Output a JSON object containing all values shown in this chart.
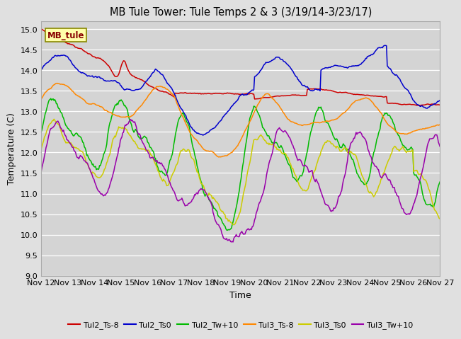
{
  "title": "MB Tule Tower: Tule Temps 2 & 3 (3/19/14-3/23/17)",
  "xlabel": "Time",
  "ylabel": "Temperature (C)",
  "ylim": [
    9.0,
    15.2
  ],
  "yticks": [
    9.0,
    9.5,
    10.0,
    10.5,
    11.0,
    11.5,
    12.0,
    12.5,
    13.0,
    13.5,
    14.0,
    14.5,
    15.0
  ],
  "xtick_labels": [
    "Nov 12",
    "Nov 13",
    "Nov 14",
    "Nov 15",
    "Nov 16",
    "Nov 17",
    "Nov 18",
    "Nov 19",
    "Nov 20",
    "Nov 21",
    "Nov 22",
    "Nov 23",
    "Nov 24",
    "Nov 25",
    "Nov 26",
    "Nov 27"
  ],
  "fig_bg_color": "#e0e0e0",
  "plot_bg_color": "#d4d4d4",
  "legend_entries": [
    "Tul2_Ts-8",
    "Tul2_Ts0",
    "Tul2_Tw+10",
    "Tul3_Ts-8",
    "Tul3_Ts0",
    "Tul3_Tw+10"
  ],
  "line_colors": [
    "#cc0000",
    "#0000cc",
    "#00bb00",
    "#ff8800",
    "#cccc00",
    "#9900aa"
  ],
  "annotation_text": "MB_tule",
  "annotation_bg": "#ffffaa",
  "annotation_border": "#888800",
  "n_points": 500
}
